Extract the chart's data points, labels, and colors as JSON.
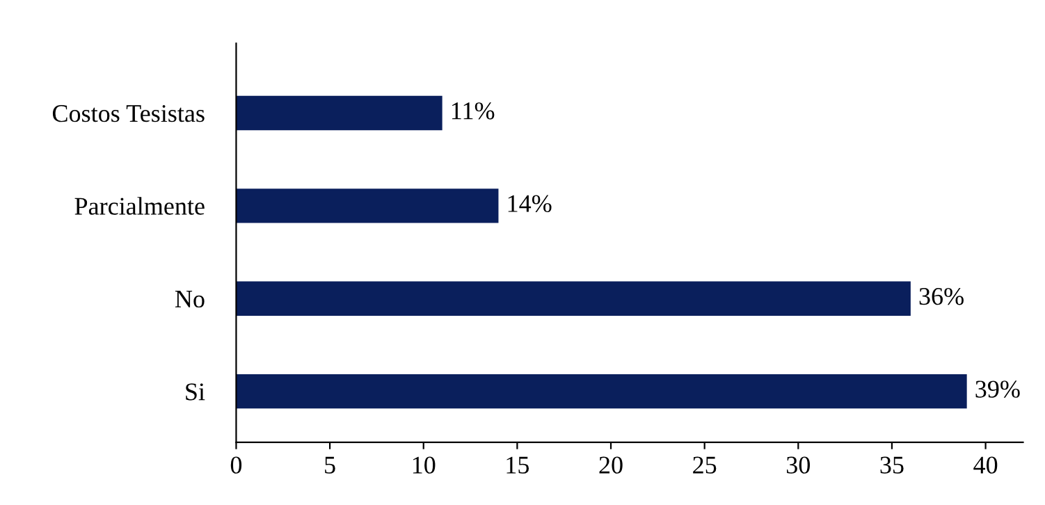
{
  "chart_data": {
    "type": "bar",
    "orientation": "horizontal",
    "categories": [
      "Costos Tesistas",
      "Parcialmente",
      "No",
      "Si"
    ],
    "values": [
      11,
      14,
      36,
      39
    ],
    "value_labels": [
      "11%",
      "14%",
      "36%",
      "39%"
    ],
    "color": "#0a1f5c",
    "xlim": [
      0,
      42
    ],
    "xticks": [
      0,
      5,
      10,
      15,
      20,
      25,
      30,
      35,
      40
    ],
    "grid": false
  }
}
